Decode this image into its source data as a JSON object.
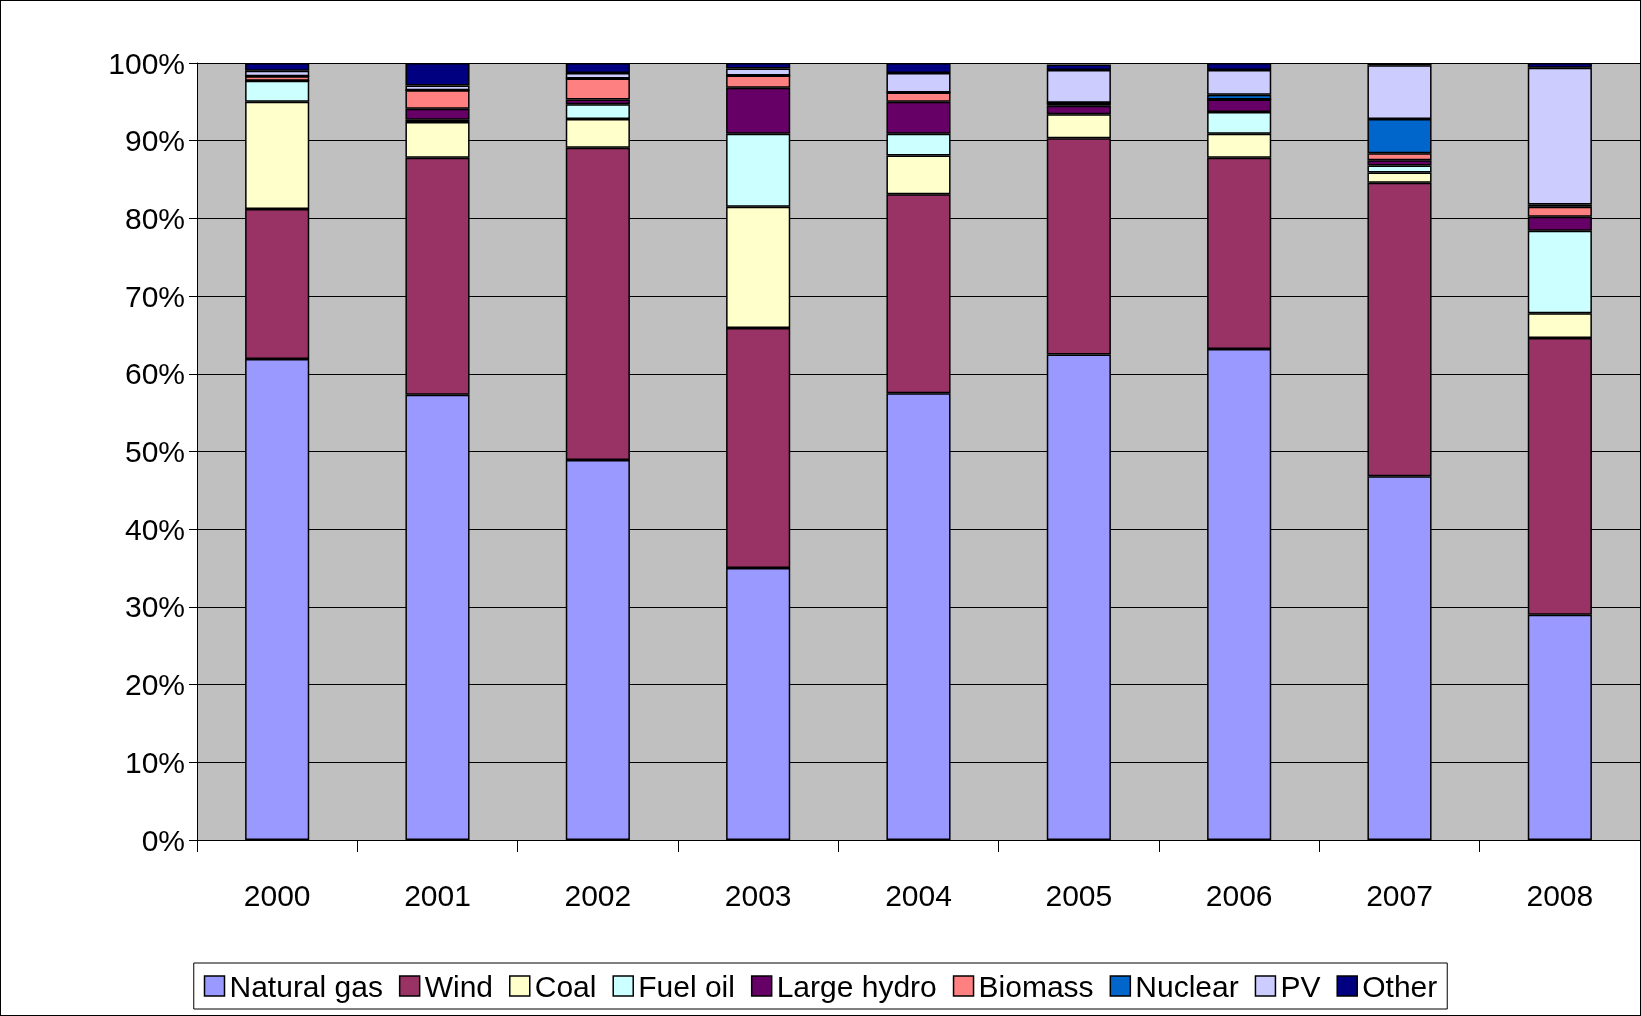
{
  "chart_data": {
    "type": "bar",
    "stacked": true,
    "categories": [
      "2000",
      "2001",
      "2002",
      "2003",
      "2004",
      "2005",
      "2006",
      "2007",
      "2008"
    ],
    "series": [
      {
        "name": "Natural gas",
        "color": "#9999ff",
        "values": [
          61.9,
          57.3,
          48.9,
          35.0,
          57.5,
          62.5,
          63.2,
          46.8,
          29.0
        ]
      },
      {
        "name": "Wind",
        "color": "#993366",
        "values": [
          19.3,
          30.5,
          40.2,
          30.9,
          25.6,
          27.8,
          24.6,
          37.8,
          35.6
        ]
      },
      {
        "name": "Coal",
        "color": "#ffffcc",
        "values": [
          13.8,
          4.6,
          3.7,
          15.6,
          5.0,
          3.1,
          3.1,
          1.3,
          3.2
        ]
      },
      {
        "name": "Fuel oil",
        "color": "#ccffff",
        "values": [
          2.7,
          0.3,
          1.9,
          9.4,
          2.8,
          null,
          2.8,
          0.9,
          10.6
        ]
      },
      {
        "name": "Large hydro",
        "color": "#660066",
        "values": [
          0,
          1.4,
          0.6,
          5.9,
          4.1,
          1.1,
          1.6,
          0.7,
          1.8
        ]
      },
      {
        "name": "Biomass",
        "color": "#ff8080",
        "values": [
          0.6,
          2.4,
          2.7,
          1.6,
          1.2,
          0.4,
          0,
          0.9,
          1.3
        ]
      },
      {
        "name": "Nuclear",
        "color": "#0066cc",
        "values": [
          0,
          0,
          0,
          0,
          0,
          0,
          0.6,
          4.4,
          0.3
        ]
      },
      {
        "name": "PV",
        "color": "#ccccff",
        "values": [
          0.7,
          0.6,
          0.7,
          0.9,
          2.5,
          4.2,
          3.2,
          6.9,
          17.6
        ]
      },
      {
        "name": "Other",
        "color": "#000080",
        "values": [
          1.0,
          2.9,
          1.3,
          0.7,
          1.3,
          0.7,
          0.9,
          0.3,
          0.6
        ]
      }
    ],
    "ylim": [
      0,
      100
    ],
    "yticks": [
      {
        "value": 0,
        "label": "0%"
      },
      {
        "value": 10,
        "label": "10%"
      },
      {
        "value": 20,
        "label": "20%"
      },
      {
        "value": 30,
        "label": "30%"
      },
      {
        "value": 40,
        "label": "40%"
      },
      {
        "value": 50,
        "label": "50%"
      },
      {
        "value": 60,
        "label": "60%"
      },
      {
        "value": 70,
        "label": "70%"
      },
      {
        "value": 80,
        "label": "80%"
      },
      {
        "value": 90,
        "label": "90%"
      },
      {
        "value": 100,
        "label": "100%"
      }
    ],
    "grid": "y",
    "legend": "bottom"
  }
}
